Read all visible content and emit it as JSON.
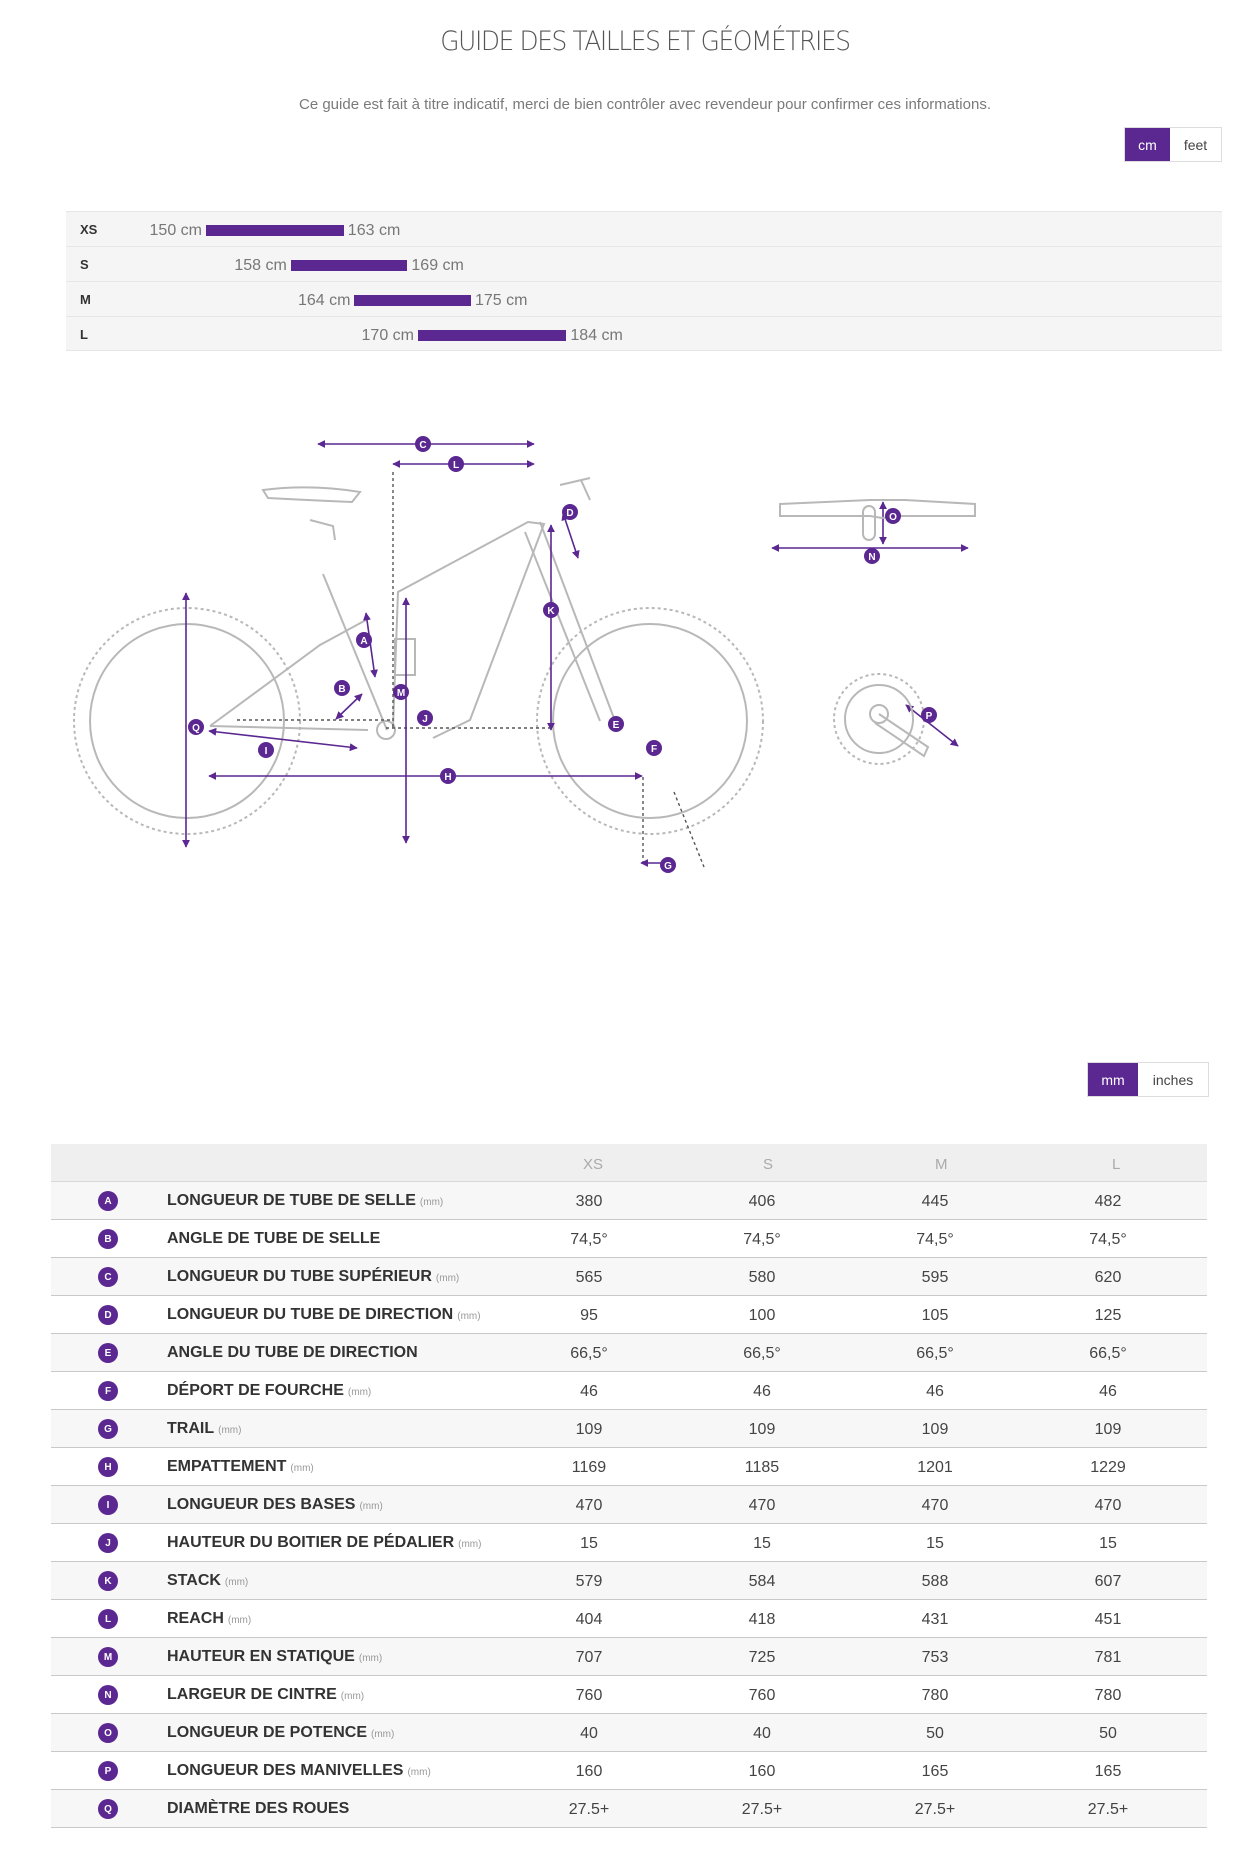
{
  "title": "GUIDE DES TAILLES ET GÉOMÉTRIES",
  "subtitle": "Ce guide est fait à titre indicatif, merci de bien contrôler avec revendeur pour confirmer ces informations.",
  "unit_toggle": {
    "options": [
      "cm",
      "feet"
    ],
    "active": "cm"
  },
  "size_chart": {
    "rows": [
      {
        "size": "XS",
        "min": "150 cm",
        "max": "163 cm",
        "min_cm": 150,
        "max_cm": 163
      },
      {
        "size": "S",
        "min": "158 cm",
        "max": "169 cm",
        "min_cm": 158,
        "max_cm": 169
      },
      {
        "size": "M",
        "min": "164 cm",
        "max": "175 cm",
        "min_cm": 164,
        "max_cm": 175
      },
      {
        "size": "L",
        "min": "170 cm",
        "max": "184 cm",
        "min_cm": 170,
        "max_cm": 184
      }
    ]
  },
  "diagram_letters": [
    "A",
    "B",
    "C",
    "D",
    "E",
    "F",
    "G",
    "H",
    "I",
    "J",
    "K",
    "L",
    "M",
    "N",
    "O",
    "P",
    "Q"
  ],
  "measure_toggle": {
    "options": [
      "mm",
      "inches"
    ],
    "active": "mm"
  },
  "geometry": {
    "columns": [
      "XS",
      "S",
      "M",
      "L"
    ],
    "rows": [
      {
        "letter": "A",
        "name": "LONGUEUR DE TUBE DE SELLE",
        "unit": "(mm)",
        "values": [
          "380",
          "406",
          "445",
          "482"
        ]
      },
      {
        "letter": "B",
        "name": "ANGLE DE TUBE DE SELLE",
        "unit": "",
        "values": [
          "74,5°",
          "74,5°",
          "74,5°",
          "74,5°"
        ]
      },
      {
        "letter": "C",
        "name": "LONGUEUR DU TUBE SUPÉRIEUR",
        "unit": "(mm)",
        "values": [
          "565",
          "580",
          "595",
          "620"
        ]
      },
      {
        "letter": "D",
        "name": "LONGUEUR DU TUBE DE DIRECTION",
        "unit": "(mm)",
        "values": [
          "95",
          "100",
          "105",
          "125"
        ]
      },
      {
        "letter": "E",
        "name": "ANGLE DU TUBE DE DIRECTION",
        "unit": "",
        "values": [
          "66,5°",
          "66,5°",
          "66,5°",
          "66,5°"
        ]
      },
      {
        "letter": "F",
        "name": "DÉPORT DE FOURCHE",
        "unit": "(mm)",
        "values": [
          "46",
          "46",
          "46",
          "46"
        ]
      },
      {
        "letter": "G",
        "name": "TRAIL",
        "unit": "(mm)",
        "values": [
          "109",
          "109",
          "109",
          "109"
        ]
      },
      {
        "letter": "H",
        "name": "EMPATTEMENT",
        "unit": "(mm)",
        "values": [
          "1169",
          "1185",
          "1201",
          "1229"
        ]
      },
      {
        "letter": "I",
        "name": "LONGUEUR DES BASES",
        "unit": "(mm)",
        "values": [
          "470",
          "470",
          "470",
          "470"
        ]
      },
      {
        "letter": "J",
        "name": "HAUTEUR DU BOITIER DE PÉDALIER",
        "unit": "(mm)",
        "values": [
          "15",
          "15",
          "15",
          "15"
        ]
      },
      {
        "letter": "K",
        "name": "STACK",
        "unit": "(mm)",
        "values": [
          "579",
          "584",
          "588",
          "607"
        ]
      },
      {
        "letter": "L",
        "name": "REACH",
        "unit": "(mm)",
        "values": [
          "404",
          "418",
          "431",
          "451"
        ]
      },
      {
        "letter": "M",
        "name": "HAUTEUR EN STATIQUE",
        "unit": "(mm)",
        "values": [
          "707",
          "725",
          "753",
          "781"
        ]
      },
      {
        "letter": "N",
        "name": "LARGEUR DE CINTRE",
        "unit": "(mm)",
        "values": [
          "760",
          "760",
          "780",
          "780"
        ]
      },
      {
        "letter": "O",
        "name": "LONGUEUR DE POTENCE",
        "unit": "(mm)",
        "values": [
          "40",
          "40",
          "50",
          "50"
        ]
      },
      {
        "letter": "P",
        "name": "LONGUEUR DES MANIVELLES",
        "unit": "(mm)",
        "values": [
          "160",
          "160",
          "165",
          "165"
        ]
      },
      {
        "letter": "Q",
        "name": "DIAMÈTRE DES ROUES",
        "unit": "",
        "values": [
          "27.5+",
          "27.5+",
          "27.5+",
          "27.5+"
        ]
      }
    ]
  },
  "colors": {
    "accent": "#5b2791",
    "line": "#b8b8b8"
  }
}
